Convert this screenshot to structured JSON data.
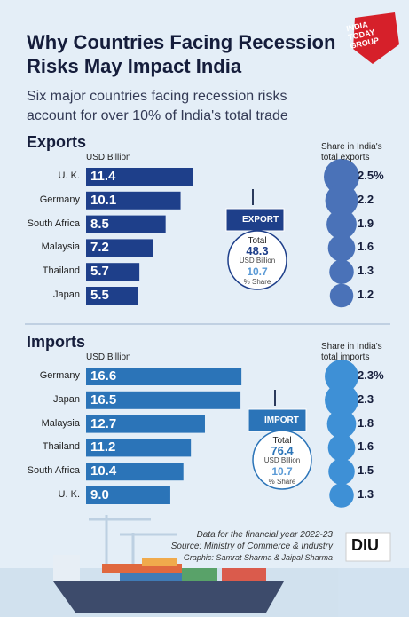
{
  "header": {
    "logo": "INDIA TODAY GROUP",
    "title": "Why Countries Facing Recession Risks May Impact India",
    "subtitle": "Six major countries facing recession risks account for over 10% of India's total trade"
  },
  "chart_data": [
    {
      "type": "bar",
      "orientation": "horizontal",
      "title": "Exports",
      "categories": [
        "U. K.",
        "Germany",
        "South Africa",
        "Malaysia",
        "Thailand",
        "Japan"
      ],
      "series": [
        {
          "name": "USD Billion",
          "color": "#1e3f8a",
          "values": [
            11.4,
            10.1,
            8.5,
            7.2,
            5.7,
            5.5
          ]
        },
        {
          "name": "Share in India's total exports",
          "color": "#4a72b8",
          "values": [
            2.5,
            2.2,
            1.9,
            1.6,
            1.3,
            1.2
          ],
          "value_labels": [
            "2.5%",
            "2.2",
            "1.9",
            "1.6",
            "1.3",
            "1.2"
          ]
        }
      ],
      "badge": "EXPORT",
      "total": {
        "label": "Total",
        "value": 48.3,
        "unit": "USD Billion",
        "share": 10.7,
        "share_unit": "% Share"
      }
    },
    {
      "type": "bar",
      "orientation": "horizontal",
      "title": "Imports",
      "categories": [
        "Germany",
        "Japan",
        "Malaysia",
        "Thailand",
        "South Africa",
        "U. K."
      ],
      "series": [
        {
          "name": "USD Billion",
          "color": "#2b74b8",
          "values": [
            16.6,
            16.5,
            12.7,
            11.2,
            10.4,
            9.0
          ],
          "value_labels": [
            "16.6",
            "16.5",
            "12.7",
            "11.2",
            "10.4",
            "9.0"
          ]
        },
        {
          "name": "Share in India's total imports",
          "color": "#3e90d6",
          "values": [
            2.3,
            2.3,
            1.8,
            1.6,
            1.5,
            1.3
          ],
          "value_labels": [
            "2.3%",
            "2.3",
            "1.8",
            "1.6",
            "1.5",
            "1.3"
          ]
        }
      ],
      "badge": "IMPORT",
      "total": {
        "label": "Total",
        "value": 76.4,
        "unit": "USD Billion",
        "share": 10.7,
        "share_unit": "% Share"
      }
    }
  ],
  "footer": {
    "note": "Data for the financial year 2022-23",
    "source": "Source: Ministry of Commerce & Industry",
    "credits": "Graphic: Samrat Sharma & Jaipal Sharma",
    "logo": "DIU"
  }
}
